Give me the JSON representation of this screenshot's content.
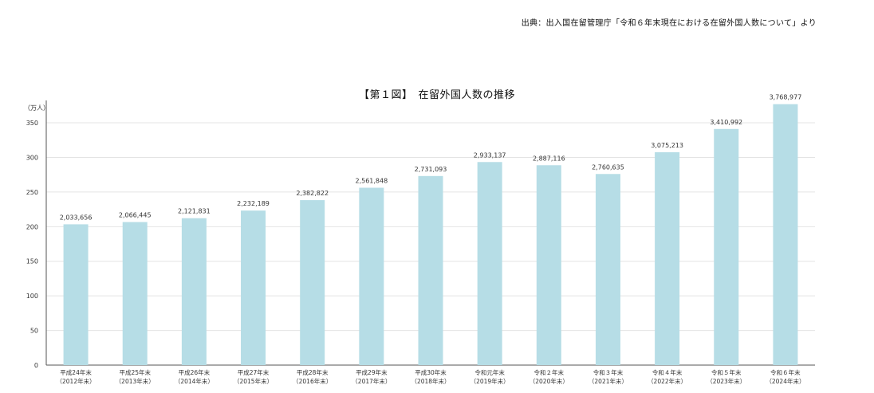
{
  "source": "出典：出入国在留管理庁「令和６年末現在における在留外国人数について」より",
  "chart_data": {
    "type": "bar",
    "title": "【第１図】　在留外国人数の推移",
    "ylabel": "（万人）",
    "xlabel": "",
    "ylim": [
      0,
      380
    ],
    "yticks": [
      0,
      50,
      100,
      150,
      200,
      250,
      300,
      350
    ],
    "grid": true,
    "bar_color": "#b6dde6",
    "categories": [
      [
        "平成24年末",
        "（2012年末）"
      ],
      [
        "平成25年末",
        "（2013年末）"
      ],
      [
        "平成26年末",
        "（2014年末）"
      ],
      [
        "平成27年末",
        "（2015年末）"
      ],
      [
        "平成28年末",
        "（2016年末）"
      ],
      [
        "平成29年末",
        "（2017年末）"
      ],
      [
        "平成30年末",
        "（2018年末）"
      ],
      [
        "令和元年末",
        "（2019年末）"
      ],
      [
        "令和２年末",
        "（2020年末）"
      ],
      [
        "令和３年末",
        "（2021年末）"
      ],
      [
        "令和４年末",
        "（2022年末）"
      ],
      [
        "令和５年末",
        "（2023年末）"
      ],
      [
        "令和６年末",
        "（2024年末）"
      ]
    ],
    "values": [
      203.3656,
      206.6445,
      212.1831,
      223.2189,
      238.2822,
      256.1848,
      273.1093,
      293.3137,
      288.7116,
      276.0635,
      307.5213,
      341.0992,
      376.8977
    ],
    "data_labels": [
      "2,033,656",
      "2,066,445",
      "2,121,831",
      "2,232,189",
      "2,382,822",
      "2,561,848",
      "2,731,093",
      "2,933,137",
      "2,887,116",
      "2,760,635",
      "3,075,213",
      "3,410,992",
      "3,768,977"
    ]
  }
}
